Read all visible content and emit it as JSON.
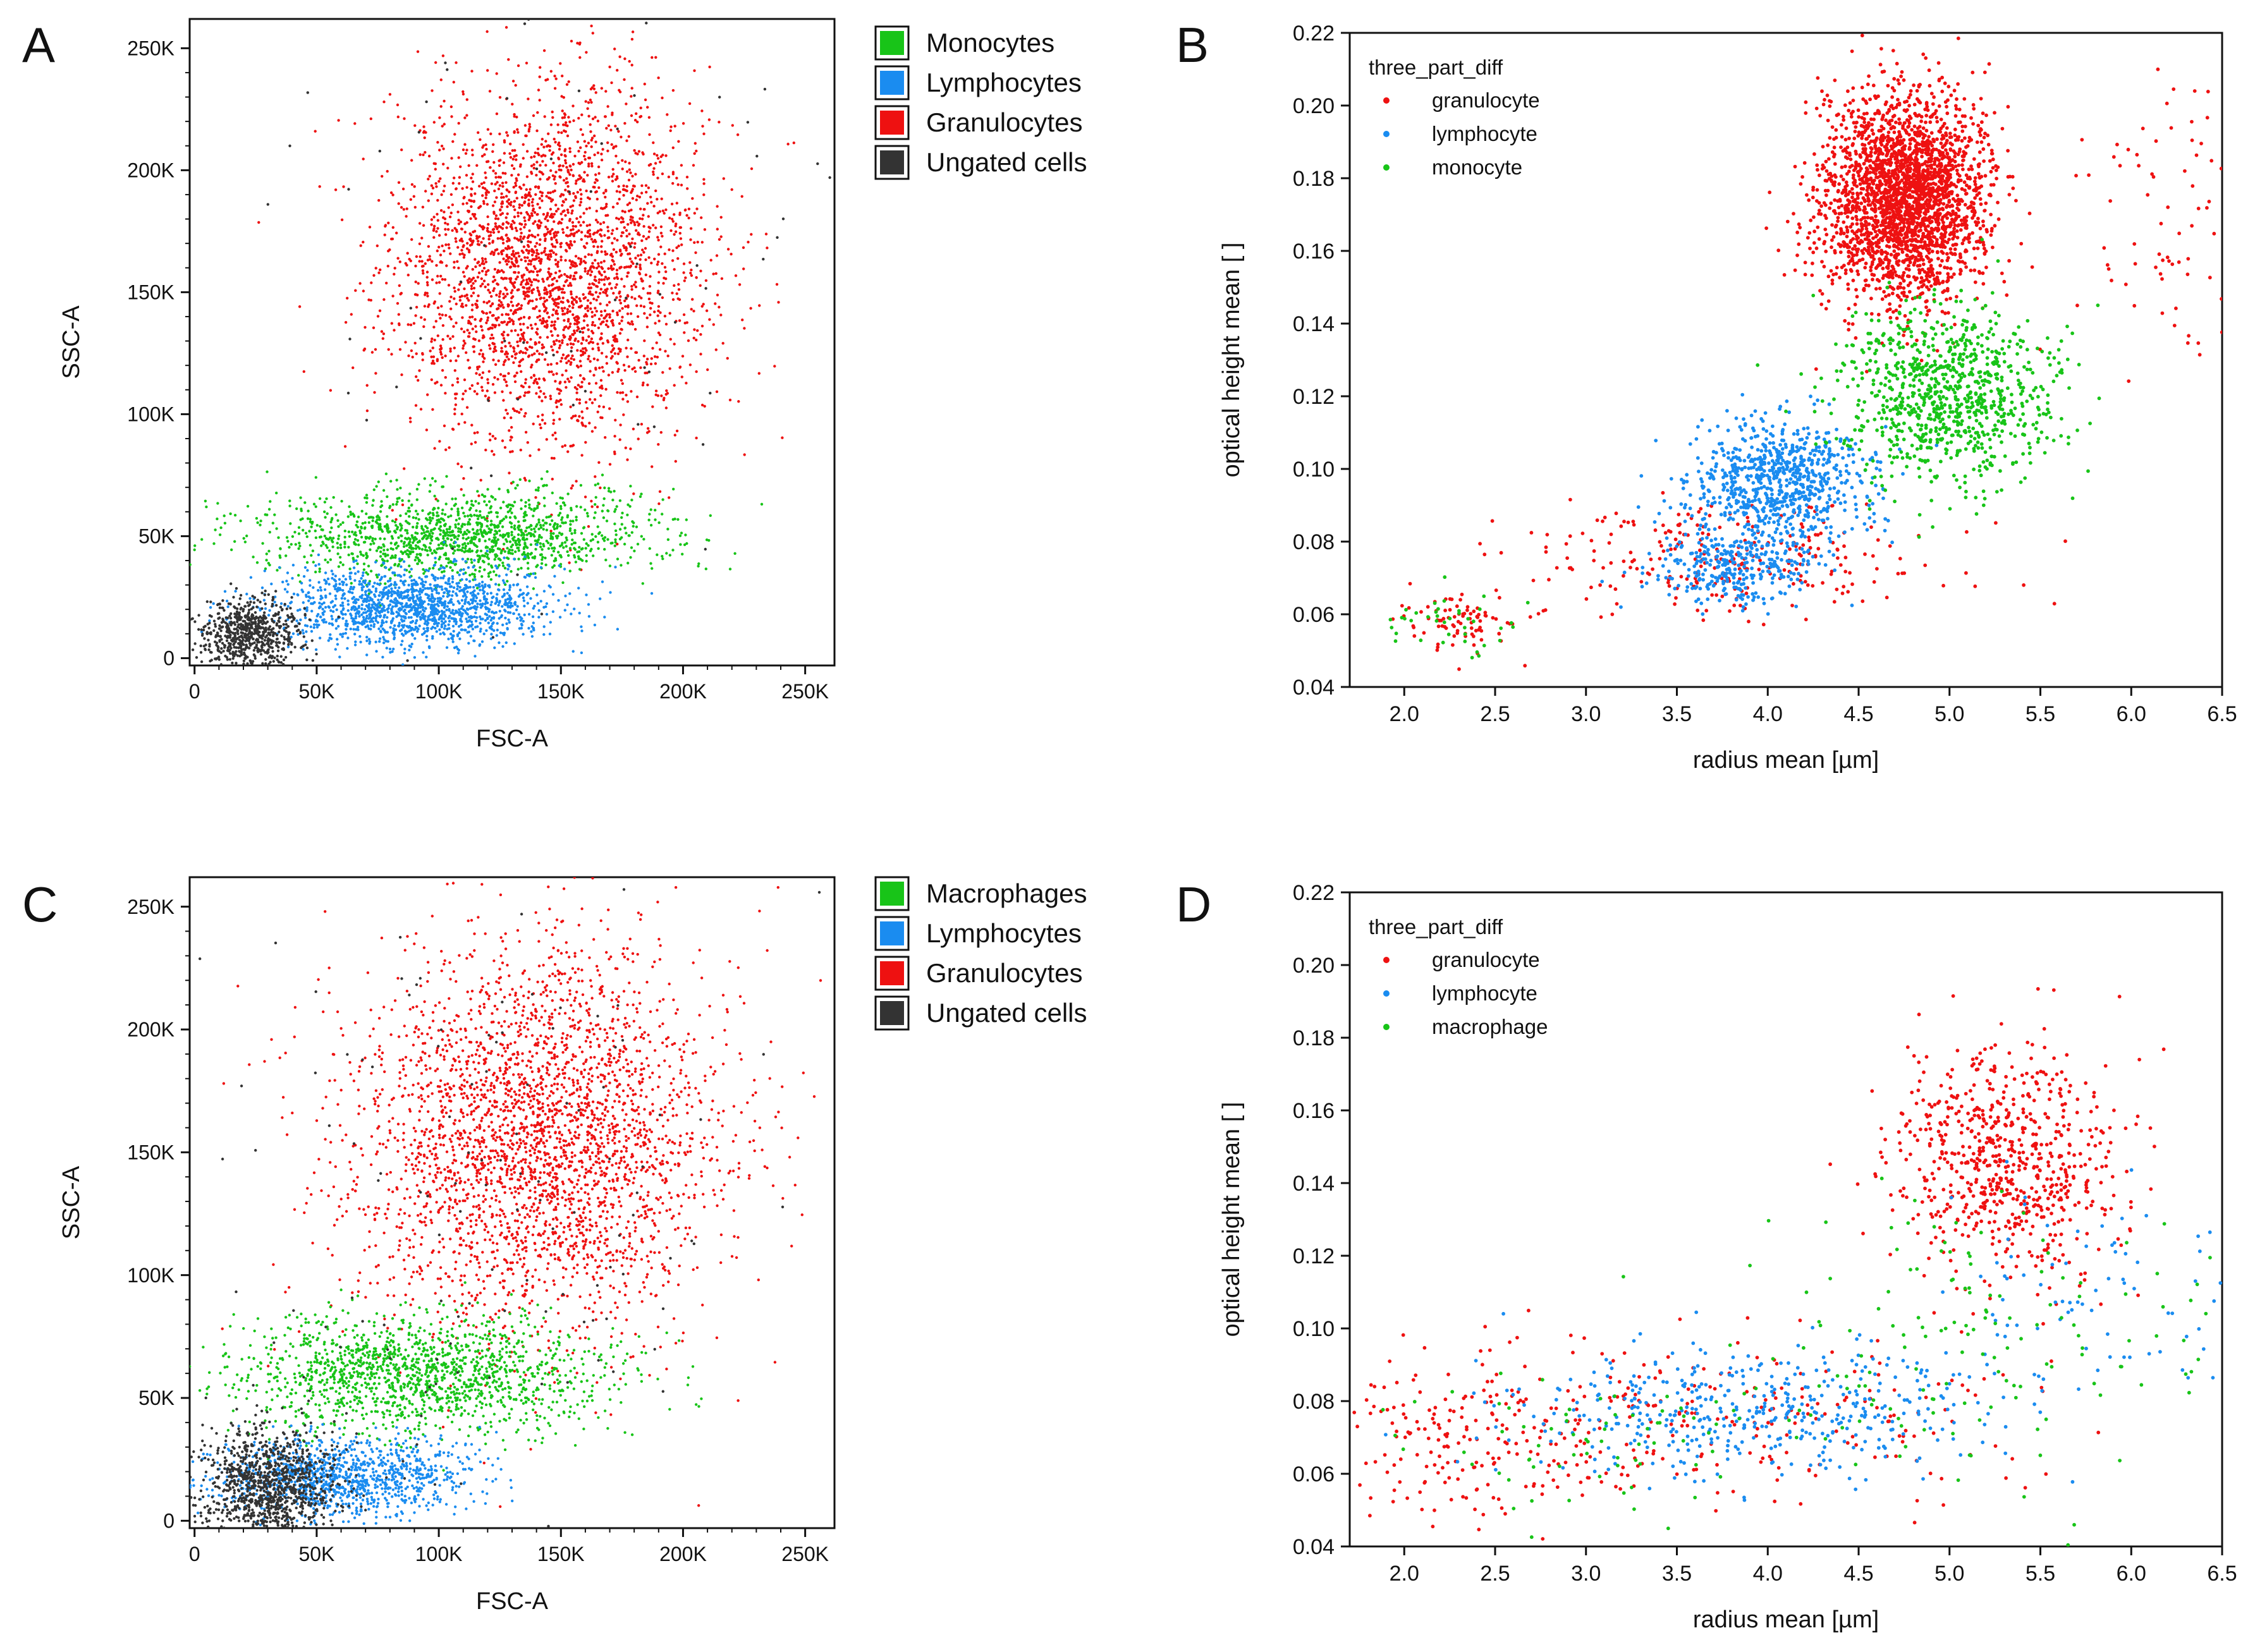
{
  "figure": {
    "panels": [
      "A",
      "B",
      "C",
      "D"
    ],
    "colors": {
      "green": "#18c418",
      "blue": "#1a8cf0",
      "red": "#ee1111",
      "dark": "#333333",
      "axis": "#111111"
    }
  },
  "chart_data": [
    {
      "panel": "A",
      "type": "scatter",
      "title": "",
      "xlabel": "FSC-A",
      "ylabel": "SSC-A",
      "xlim": [
        -2000,
        262000
      ],
      "ylim": [
        -3000,
        262000
      ],
      "xticks": [
        0,
        50000,
        100000,
        150000,
        200000,
        250000
      ],
      "xticklabels": [
        "0",
        "50K",
        "100K",
        "150K",
        "200K",
        "250K"
      ],
      "yticks": [
        0,
        50000,
        100000,
        150000,
        200000,
        250000
      ],
      "yticklabels": [
        "0",
        "50K",
        "100K",
        "150K",
        "200K",
        "250K"
      ],
      "legend_position": "outside-right-top",
      "legend": [
        {
          "label": "Monocytes",
          "color": "green"
        },
        {
          "label": "Lymphocytes",
          "color": "blue"
        },
        {
          "label": "Granulocytes",
          "color": "red"
        },
        {
          "label": "Ungated cells",
          "color": "dark"
        }
      ],
      "clusters": [
        {
          "name": "Granulocytes",
          "color": "red",
          "n": 3000,
          "center": [
            145000,
            160000
          ],
          "spread": [
            32000,
            36000
          ]
        },
        {
          "name": "Monocytes",
          "color": "green",
          "n": 1400,
          "center": [
            110000,
            50000
          ],
          "spread": [
            40000,
            9000
          ]
        },
        {
          "name": "Lymphocytes",
          "color": "blue",
          "n": 1500,
          "center": [
            90000,
            21000
          ],
          "spread": [
            28000,
            8000
          ]
        },
        {
          "name": "Ungated cells",
          "color": "dark",
          "n": 700,
          "center": [
            22000,
            10000
          ],
          "spread": [
            10000,
            7000
          ]
        },
        {
          "name": "Ungated cells (scattered)",
          "color": "dark",
          "n": 90,
          "center": [
            150000,
            150000
          ],
          "spread": [
            70000,
            70000
          ]
        }
      ]
    },
    {
      "panel": "B",
      "type": "scatter",
      "title": "",
      "xlabel": "radius mean [µm]",
      "ylabel": "optical height mean [ ]",
      "xlim": [
        1.7,
        6.5
      ],
      "ylim": [
        0.04,
        0.22
      ],
      "xticks": [
        2.0,
        2.5,
        3.0,
        3.5,
        4.0,
        4.5,
        5.0,
        5.5,
        6.0,
        6.5
      ],
      "xticklabels": [
        "2.0",
        "2.5",
        "3.0",
        "3.5",
        "4.0",
        "4.5",
        "5.0",
        "5.5",
        "6.0",
        "6.5"
      ],
      "yticks": [
        0.04,
        0.06,
        0.08,
        0.1,
        0.12,
        0.14,
        0.16,
        0.18,
        0.2,
        0.22
      ],
      "yticklabels": [
        "0.04",
        "0.06",
        "0.08",
        "0.10",
        "0.12",
        "0.14",
        "0.16",
        "0.18",
        "0.20",
        "0.22"
      ],
      "legend_title": "three_part_diff",
      "legend_position": "top-left",
      "legend": [
        {
          "label": "granulocyte",
          "color": "red"
        },
        {
          "label": "lymphocyte",
          "color": "blue"
        },
        {
          "label": "monocyte",
          "color": "green"
        }
      ],
      "clusters": [
        {
          "name": "granulocyte",
          "color": "red",
          "n": 2600,
          "center": [
            4.75,
            0.175
          ],
          "spread": [
            0.22,
            0.014
          ]
        },
        {
          "name": "granulocyte (tail)",
          "color": "red",
          "n": 260,
          "center": [
            3.8,
            0.075
          ],
          "spread": [
            0.55,
            0.008
          ]
        },
        {
          "name": "granulocyte (small)",
          "color": "red",
          "n": 90,
          "center": [
            2.3,
            0.058
          ],
          "spread": [
            0.18,
            0.004
          ]
        },
        {
          "name": "granulocyte (outliers)",
          "color": "red",
          "n": 80,
          "center": [
            6.2,
            0.17
          ],
          "spread": [
            0.25,
            0.025
          ]
        },
        {
          "name": "lymphocyte",
          "color": "blue",
          "n": 800,
          "center": [
            4.05,
            0.096
          ],
          "spread": [
            0.25,
            0.009
          ]
        },
        {
          "name": "lymphocyte (low)",
          "color": "blue",
          "n": 300,
          "center": [
            3.8,
            0.073
          ],
          "spread": [
            0.22,
            0.005
          ]
        },
        {
          "name": "monocyte",
          "color": "green",
          "n": 900,
          "center": [
            5.0,
            0.12
          ],
          "spread": [
            0.28,
            0.012
          ]
        },
        {
          "name": "monocyte (small)",
          "color": "green",
          "n": 40,
          "center": [
            2.3,
            0.058
          ],
          "spread": [
            0.18,
            0.005
          ]
        }
      ]
    },
    {
      "panel": "C",
      "type": "scatter",
      "title": "",
      "xlabel": "FSC-A",
      "ylabel": "SSC-A",
      "xlim": [
        -2000,
        262000
      ],
      "ylim": [
        -3000,
        262000
      ],
      "xticks": [
        0,
        50000,
        100000,
        150000,
        200000,
        250000
      ],
      "xticklabels": [
        "0",
        "50K",
        "100K",
        "150K",
        "200K",
        "250K"
      ],
      "yticks": [
        0,
        50000,
        100000,
        150000,
        200000,
        250000
      ],
      "yticklabels": [
        "0",
        "50K",
        "100K",
        "150K",
        "200K",
        "250K"
      ],
      "legend_position": "outside-right-top",
      "legend": [
        {
          "label": "Macrophages",
          "color": "green"
        },
        {
          "label": "Lymphocytes",
          "color": "blue"
        },
        {
          "label": "Granulocytes",
          "color": "red"
        },
        {
          "label": "Ungated cells",
          "color": "dark"
        }
      ],
      "clusters": [
        {
          "name": "Granulocytes",
          "color": "red",
          "n": 3000,
          "center": [
            140000,
            155000
          ],
          "spread": [
            38000,
            40000
          ]
        },
        {
          "name": "Macrophages",
          "color": "green",
          "n": 1500,
          "center": [
            90000,
            60000
          ],
          "spread": [
            38000,
            12000
          ]
        },
        {
          "name": "Lymphocytes",
          "color": "blue",
          "n": 1100,
          "center": [
            62000,
            18000
          ],
          "spread": [
            25000,
            8000
          ]
        },
        {
          "name": "Ungated cells",
          "color": "dark",
          "n": 1100,
          "center": [
            30000,
            15000
          ],
          "spread": [
            14000,
            12000
          ]
        },
        {
          "name": "Ungated cells (scattered)",
          "color": "dark",
          "n": 130,
          "center": [
            130000,
            120000
          ],
          "spread": [
            70000,
            70000
          ]
        }
      ]
    },
    {
      "panel": "D",
      "type": "scatter",
      "title": "",
      "xlabel": "radius mean [µm]",
      "ylabel": "optical height mean [ ]",
      "xlim": [
        1.7,
        6.5
      ],
      "ylim": [
        0.04,
        0.22
      ],
      "xticks": [
        2.0,
        2.5,
        3.0,
        3.5,
        4.0,
        4.5,
        5.0,
        5.5,
        6.0,
        6.5
      ],
      "xticklabels": [
        "2.0",
        "2.5",
        "3.0",
        "3.5",
        "4.0",
        "4.5",
        "5.0",
        "5.5",
        "6.0",
        "6.5"
      ],
      "yticks": [
        0.04,
        0.06,
        0.08,
        0.1,
        0.12,
        0.14,
        0.16,
        0.18,
        0.2,
        0.22
      ],
      "yticklabels": [
        "0.04",
        "0.06",
        "0.08",
        "0.10",
        "0.12",
        "0.14",
        "0.16",
        "0.18",
        "0.20",
        "0.22"
      ],
      "legend_title": "three_part_diff",
      "legend_position": "top-left",
      "legend": [
        {
          "label": "granulocyte",
          "color": "red"
        },
        {
          "label": "lymphocyte",
          "color": "blue"
        },
        {
          "label": "macrophage",
          "color": "green"
        }
      ],
      "clusters": [
        {
          "name": "granulocyte",
          "color": "red",
          "n": 700,
          "center": [
            5.3,
            0.147
          ],
          "spread": [
            0.3,
            0.016
          ]
        },
        {
          "name": "granulocyte (tail)",
          "color": "red",
          "n": 300,
          "center": [
            3.5,
            0.075
          ],
          "spread": [
            1.0,
            0.012
          ]
        },
        {
          "name": "granulocyte (small)",
          "color": "red",
          "n": 120,
          "center": [
            2.3,
            0.068
          ],
          "spread": [
            0.25,
            0.012
          ]
        },
        {
          "name": "lymphocyte",
          "color": "blue",
          "n": 450,
          "center": [
            3.9,
            0.077
          ],
          "spread": [
            0.65,
            0.009
          ]
        },
        {
          "name": "lymphocyte (high)",
          "color": "blue",
          "n": 80,
          "center": [
            5.7,
            0.11
          ],
          "spread": [
            0.45,
            0.014
          ]
        },
        {
          "name": "macrophage",
          "color": "green",
          "n": 140,
          "center": [
            5.2,
            0.1
          ],
          "spread": [
            0.7,
            0.018
          ]
        },
        {
          "name": "macrophage (low)",
          "color": "green",
          "n": 80,
          "center": [
            3.2,
            0.068
          ],
          "spread": [
            0.8,
            0.01
          ]
        }
      ]
    }
  ]
}
